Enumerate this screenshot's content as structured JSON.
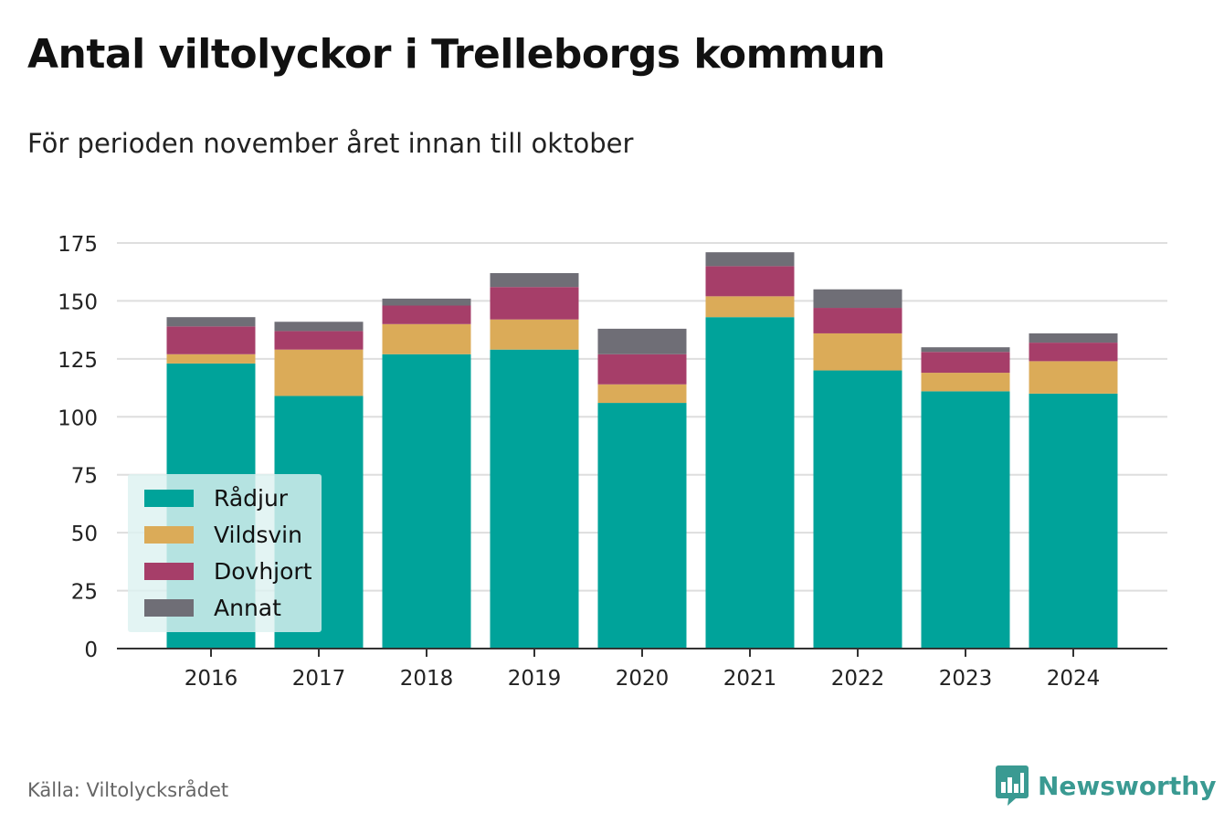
{
  "header": {
    "title": "Antal viltolyckor i Trelleborgs kommun",
    "subtitle": "För perioden november året innan till oktober"
  },
  "footer": {
    "source": "Källa: Viltolycksrådet",
    "brand": "Newsworthy",
    "brand_icon": "bar-chart-speech-bubble-icon",
    "brand_color": "#3a9a92"
  },
  "chart_data": {
    "type": "bar",
    "stacked": true,
    "title": "Antal viltolyckor i Trelleborgs kommun",
    "subtitle": "För perioden november året innan till oktober",
    "xlabel": "",
    "ylabel": "",
    "ylim": [
      0,
      175
    ],
    "yticks": [
      0,
      25,
      50,
      75,
      100,
      125,
      150,
      175
    ],
    "grid": true,
    "legend_position": "bottom-left",
    "categories": [
      "2016",
      "2017",
      "2018",
      "2019",
      "2020",
      "2021",
      "2022",
      "2023",
      "2024"
    ],
    "series": [
      {
        "name": "Rådjur",
        "color": "#00a39a",
        "values": [
          123,
          109,
          127,
          129,
          106,
          143,
          120,
          111,
          110
        ]
      },
      {
        "name": "Vildsvin",
        "color": "#dbab58",
        "values": [
          4,
          20,
          13,
          13,
          8,
          9,
          16,
          8,
          14
        ]
      },
      {
        "name": "Dovhjort",
        "color": "#a63e69",
        "values": [
          12,
          8,
          8,
          14,
          13,
          13,
          11,
          9,
          8
        ]
      },
      {
        "name": "Annat",
        "color": "#6f6e76",
        "values": [
          4,
          4,
          3,
          6,
          11,
          6,
          8,
          2,
          4
        ]
      }
    ]
  }
}
